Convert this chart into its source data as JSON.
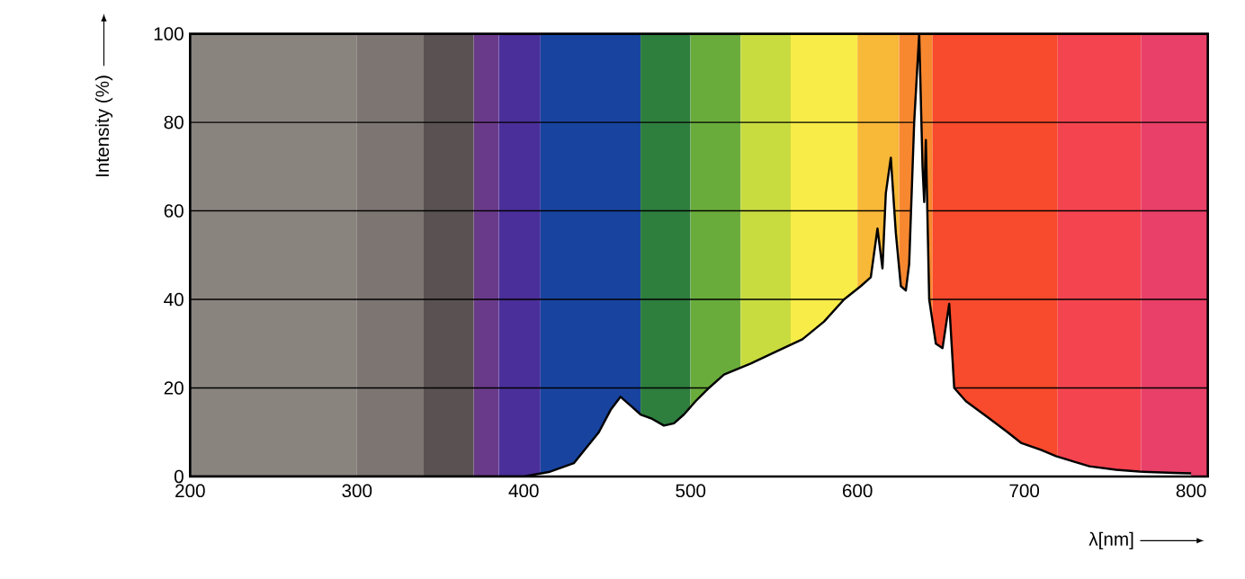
{
  "chart_data": {
    "type": "area",
    "xlabel": "λ[nm]",
    "ylabel": "Intensity (%)",
    "xlim": [
      200,
      810
    ],
    "ylim": [
      0,
      100
    ],
    "xticks": [
      200,
      300,
      400,
      500,
      600,
      700,
      800
    ],
    "yticks": [
      0,
      20,
      40,
      60,
      80,
      100
    ],
    "grid": "y",
    "bands": [
      {
        "axis": "x",
        "from": 200,
        "to": 300,
        "color": "#8a847f"
      },
      {
        "axis": "x",
        "from": 300,
        "to": 340,
        "color": "#7c7572"
      },
      {
        "axis": "x",
        "from": 340,
        "to": 370,
        "color": "#5a5252"
      },
      {
        "axis": "x",
        "from": 370,
        "to": 385,
        "color": "#6a3a8a"
      },
      {
        "axis": "x",
        "from": 385,
        "to": 410,
        "color": "#4a2f9a"
      },
      {
        "axis": "x",
        "from": 410,
        "to": 470,
        "color": "#1844a0"
      },
      {
        "axis": "x",
        "from": 470,
        "to": 500,
        "color": "#2e7e3e"
      },
      {
        "axis": "x",
        "from": 500,
        "to": 530,
        "color": "#6aac3c"
      },
      {
        "axis": "x",
        "from": 530,
        "to": 560,
        "color": "#c8dc40"
      },
      {
        "axis": "x",
        "from": 560,
        "to": 600,
        "color": "#f8ec48"
      },
      {
        "axis": "x",
        "from": 600,
        "to": 625,
        "color": "#f8b838"
      },
      {
        "axis": "x",
        "from": 625,
        "to": 645,
        "color": "#f88830"
      },
      {
        "axis": "x",
        "from": 645,
        "to": 720,
        "color": "#f84a2c"
      },
      {
        "axis": "x",
        "from": 720,
        "to": 770,
        "color": "#f44450"
      },
      {
        "axis": "x",
        "from": 770,
        "to": 810,
        "color": "#e84068"
      }
    ],
    "series": [
      {
        "color": "#ffffff",
        "x": [
          200,
          400,
          415,
          430,
          445,
          452,
          458,
          464,
          470,
          477,
          484,
          490,
          496,
          503,
          511,
          520,
          536,
          550,
          567,
          580,
          592,
          602,
          608,
          612,
          615,
          617,
          620,
          623,
          626,
          629,
          631,
          634,
          637,
          639,
          640,
          641,
          643,
          647,
          651,
          655,
          658,
          665,
          678,
          690,
          698,
          710,
          719,
          730,
          739,
          755,
          769,
          790,
          800
        ],
        "values": [
          0,
          0,
          1,
          3,
          10,
          15,
          18,
          16,
          14,
          13,
          11.5,
          12,
          14,
          17,
          20,
          23,
          25.5,
          28,
          31,
          35,
          40,
          43,
          45,
          56,
          47,
          64,
          72,
          55,
          43,
          42,
          48,
          80,
          100,
          70,
          62,
          76,
          40,
          30,
          29,
          39,
          20,
          17,
          13.4,
          10,
          7.6,
          6,
          4.6,
          3.3,
          2.3,
          1.5,
          1.1,
          0.8,
          0.7
        ]
      }
    ]
  }
}
